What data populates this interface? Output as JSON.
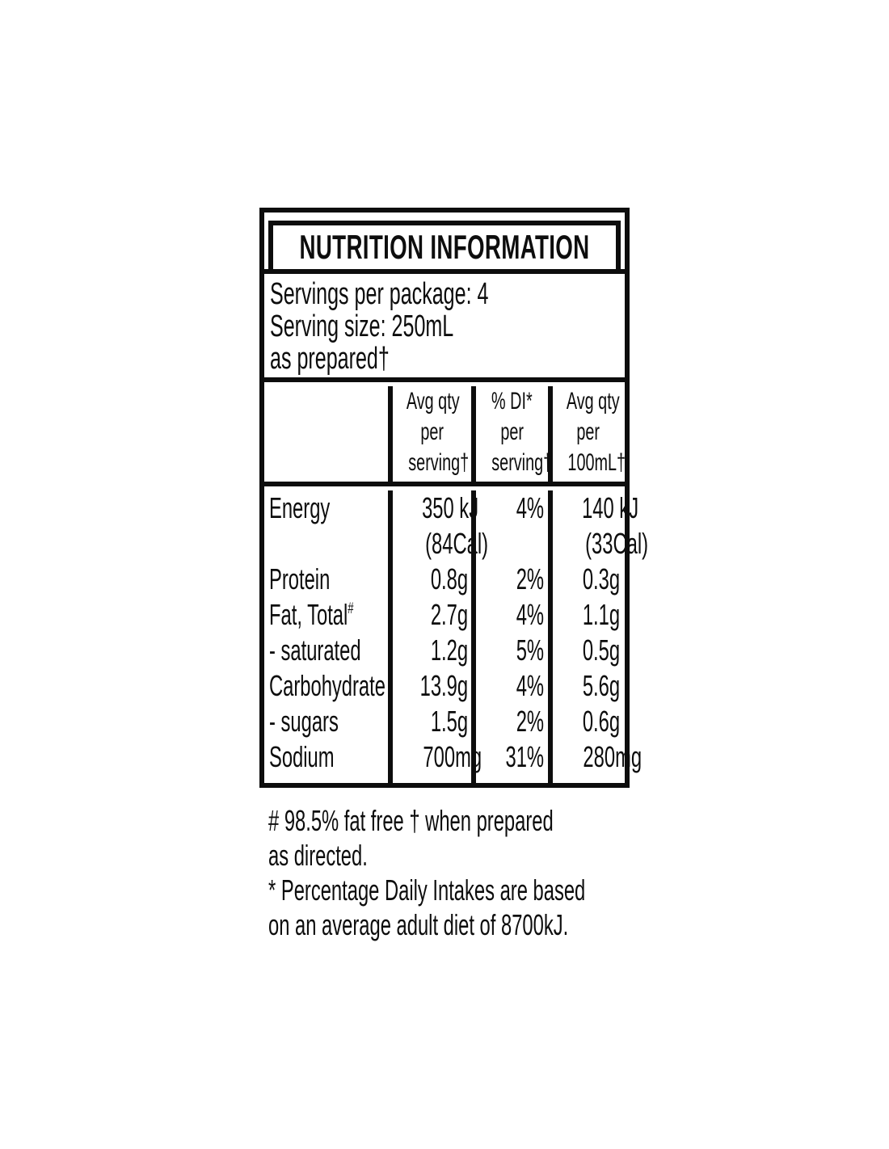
{
  "panel": {
    "title": "NUTRITION INFORMATION",
    "serving_lines": [
      "Servings per package: 4",
      "Serving size: 250mL",
      "as prepared†"
    ],
    "columns": [
      {
        "lines": [
          "",
          "",
          ""
        ]
      },
      {
        "lines": [
          "Avg qty",
          "per",
          "serving†"
        ]
      },
      {
        "lines": [
          "% DI*",
          "per",
          "serving†"
        ]
      },
      {
        "lines": [
          "Avg qty",
          "per",
          "100mL†"
        ]
      }
    ],
    "nutrients": [
      {
        "label": "Energy",
        "per_serving": "350 kJ",
        "per_serving_sub": "(84Cal)",
        "daily_intake": "4%",
        "per_100ml": "140 kJ",
        "per_100ml_sub": "(33Cal)"
      },
      {
        "label": "Protein",
        "per_serving": "0.8g",
        "daily_intake": "2%",
        "per_100ml": "0.3g"
      },
      {
        "label": "Fat, Total",
        "label_sup": "#",
        "per_serving": "2.7g",
        "daily_intake": "4%",
        "per_100ml": "1.1g"
      },
      {
        "label": "- saturated",
        "per_serving": "1.2g",
        "daily_intake": "5%",
        "per_100ml": "0.5g"
      },
      {
        "label": "Carbohydrate",
        "per_serving": "13.9g",
        "daily_intake": "4%",
        "per_100ml": "5.6g"
      },
      {
        "label": "- sugars",
        "per_serving": "1.5g",
        "daily_intake": "2%",
        "per_100ml": "0.6g"
      },
      {
        "label": "Sodium",
        "per_serving": "700mg",
        "daily_intake": "31%",
        "per_100ml": "280mg"
      }
    ],
    "footnotes": [
      {
        "lines": [
          "# 98.5% fat free † when prepared",
          "as directed."
        ]
      },
      {
        "lines": [
          "* Percentage Daily Intakes are based",
          "on an average adult diet of 8700kJ."
        ]
      }
    ],
    "colors": {
      "text": "#0d0d0d",
      "background": "#ffffff"
    }
  }
}
